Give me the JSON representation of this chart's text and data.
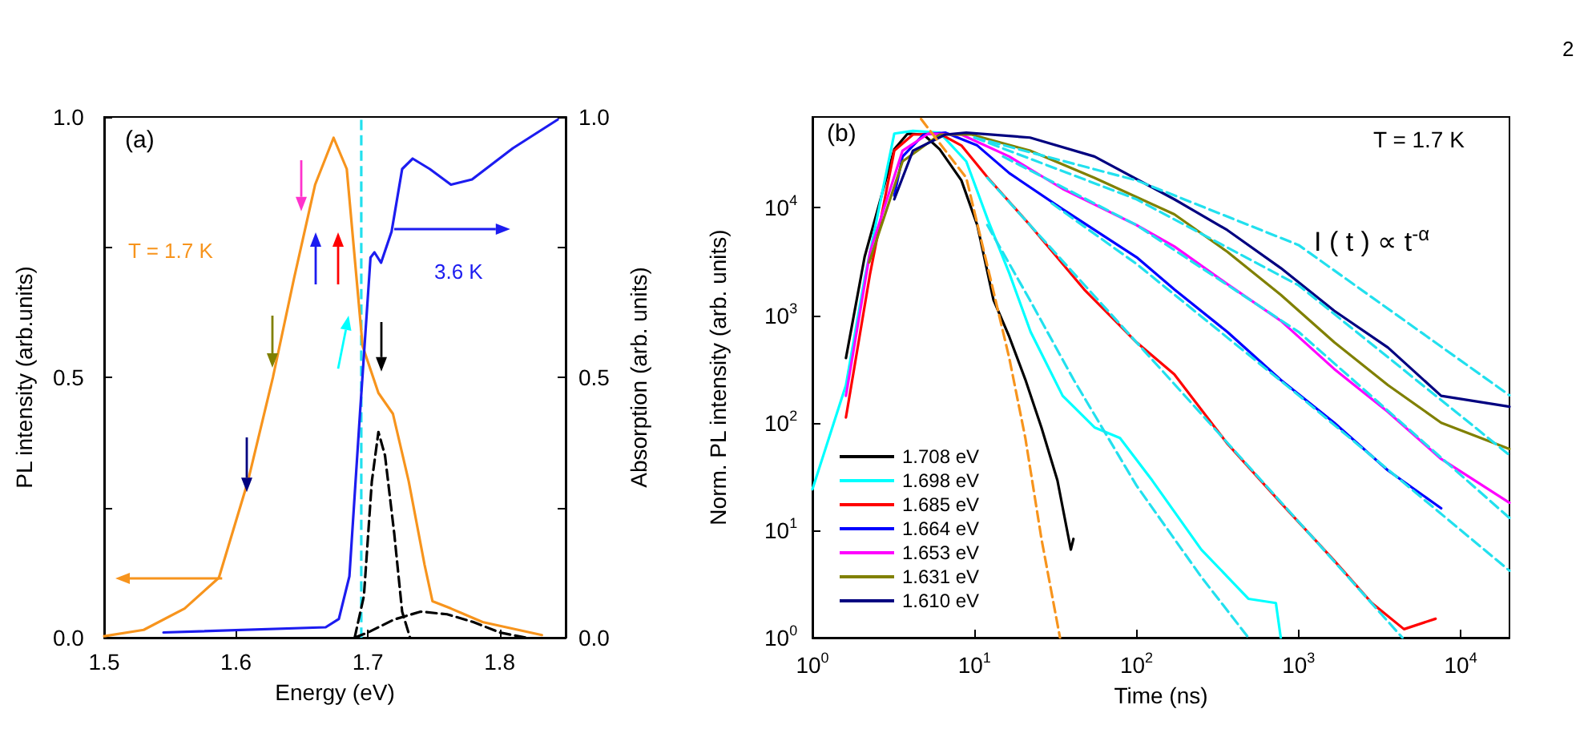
{
  "chart_data": [
    {
      "type": "line",
      "xlabel": "Energy (eV)",
      "ylabel": "PL intensity (arb.units)",
      "y2label": "Absorption (arb. units)",
      "xlim": [
        1.5,
        1.85
      ],
      "xticks": [
        1.5,
        1.6,
        1.7,
        1.8
      ],
      "ylim": [
        0,
        1
      ],
      "yticks": [
        {
          "value": 0,
          "label": "0.0"
        },
        {
          "value": 0.25,
          "label": null
        },
        {
          "value": 0.5,
          "label": "0.5"
        },
        {
          "value": 0.75,
          "label": null
        },
        {
          "value": 1,
          "label": "1.0"
        }
      ],
      "y2lim": [
        0,
        1
      ],
      "y2ticks": [
        {
          "value": 0,
          "label": "0.0"
        },
        {
          "value": 0.25,
          "label": null
        },
        {
          "value": 0.5,
          "label": "0.5"
        },
        {
          "value": 0.75,
          "label": null
        },
        {
          "value": 1,
          "label": "1.0"
        }
      ],
      "grid": false,
      "annotations": [
        "(a)",
        "T = 1.7 K",
        "3.6 K"
      ],
      "ref_lines": [
        {
          "axis": "x",
          "value": 1.695,
          "color": "#22e0ee",
          "line_style": "dashed"
        }
      ],
      "series": [
        {
          "color": "#f7941d",
          "x": [
            1.5,
            1.53,
            1.561,
            1.587,
            1.609,
            1.628,
            1.644,
            1.66,
            1.674,
            1.684,
            1.69,
            1.696,
            1.708,
            1.719,
            1.731,
            1.743,
            1.749,
            1.763,
            1.787,
            1.814,
            1.832
          ],
          "values": [
            0.003,
            0.015,
            0.056,
            0.115,
            0.3,
            0.5,
            0.69,
            0.87,
            0.96,
            0.9,
            0.73,
            0.56,
            0.47,
            0.43,
            0.3,
            0.14,
            0.07,
            0.056,
            0.03,
            0.015,
            0.005
          ]
        },
        {
          "color": "#1c1cf0",
          "axis": "y2",
          "x": [
            1.545,
            1.668,
            1.678,
            1.686,
            1.694,
            1.702,
            1.705,
            1.71,
            1.718,
            1.726,
            1.734,
            1.747,
            1.763,
            1.779,
            1.81,
            1.844
          ],
          "values": [
            0.01,
            0.02,
            0.036,
            0.118,
            0.43,
            0.73,
            0.74,
            0.72,
            0.78,
            0.9,
            0.92,
            0.9,
            0.87,
            0.88,
            0.94,
            0.995
          ]
        },
        {
          "color": "#000000",
          "line_style": "dashed",
          "x": [
            1.69,
            1.697,
            1.703,
            1.708,
            1.713,
            1.72,
            1.726,
            1.732
          ],
          "values": [
            0,
            0.08,
            0.3,
            0.395,
            0.35,
            0.2,
            0.05,
            0
          ]
        },
        {
          "color": "#000000",
          "line_style": "dashed",
          "x": [
            1.69,
            1.7,
            1.72,
            1.74,
            1.76,
            1.78,
            1.8,
            1.82
          ],
          "values": [
            0,
            0.01,
            0.035,
            0.05,
            0.045,
            0.03,
            0.01,
            0
          ]
        }
      ]
    },
    {
      "type": "line",
      "xlabel": "Time (ns)",
      "ylabel": "Norm. PL intensity (arb. units)",
      "log": "xy",
      "xlim": [
        1,
        20000
      ],
      "xticks": [
        {
          "value": 1,
          "label": "10$^{0}$"
        },
        {
          "value": 10,
          "label": "10$^{1}$"
        },
        {
          "value": 100,
          "label": "10$^{2}$"
        },
        {
          "value": 1000,
          "label": "10$^{3}$"
        },
        {
          "value": 10000,
          "label": "10$^{4}$"
        }
      ],
      "ylim": [
        1,
        70000
      ],
      "yticks": [
        {
          "value": 1,
          "label": "10$^{0}$"
        },
        {
          "value": 10,
          "label": "10$^{1}$"
        },
        {
          "value": 100,
          "label": "10$^{2}$"
        },
        {
          "value": 1000,
          "label": "10$^{3}$"
        },
        {
          "value": 10000,
          "label": "10$^{4}$"
        }
      ],
      "grid": false,
      "legend": "bottom left",
      "annotations": [
        "(b)",
        "T = 1.7 K",
        "I ( t ) ∝ t$^{-α}$",
        "2"
      ],
      "series": [
        {
          "name": "1.708 eV",
          "color": "#000000",
          "x": [
            1.61,
            2.1,
            3.2,
            3.87,
            4.86,
            6.1,
            8.3,
            10.4,
            13.1,
            16.4,
            20.6,
            25.9,
            32.5,
            39.3,
            40.8
          ],
          "values": [
            400,
            3500,
            35000,
            49000,
            48000,
            35000,
            18000,
            6900,
            1390,
            630,
            252,
            90,
            29,
            6.6,
            8.3
          ]
        },
        {
          "name": "1.698 eV",
          "color": "#00ffff",
          "x": [
            1,
            1.61,
            2.1,
            3.2,
            4.17,
            6.1,
            8.9,
            12.1,
            16.4,
            22.2,
            35,
            55.3,
            79,
            125,
            251,
            363,
            490,
            724,
            776
          ],
          "values": [
            24,
            224,
            2200,
            49000,
            52000,
            50000,
            27000,
            7700,
            2460,
            700,
            178,
            90,
            72,
            29,
            6.6,
            3.7,
            2.3,
            2.1,
            1
          ]
        },
        {
          "name": "1.685 eV",
          "color": "#ff0000",
          "x": [
            1.61,
            2.27,
            3.2,
            4.17,
            6.1,
            8.3,
            12.1,
            22,
            47.5,
            100,
            171,
            363,
            776,
            1660,
            2830,
            4470,
            7000
          ],
          "values": [
            112,
            2450,
            34000,
            48000,
            49000,
            38000,
            19000,
            6900,
            1740,
            560,
            282,
            64,
            18,
            5.2,
            2.1,
            1.2,
            1.5
          ]
        },
        {
          "name": "1.664 eV",
          "color": "#0000ff",
          "x": [
            3.2,
            3.6,
            4.86,
            6.6,
            10.4,
            16.4,
            35,
            100,
            171,
            363,
            776,
            1660,
            3560,
            7580
          ],
          "values": [
            13000,
            30000,
            48000,
            50000,
            38000,
            21000,
            9700,
            3470,
            1740,
            700,
            250,
            100,
            36,
            16
          ]
        },
        {
          "name": "1.653 eV",
          "color": "#ff00ff",
          "x": [
            1.61,
            2.27,
            3.6,
            5.2,
            8.3,
            16.4,
            35,
            100,
            171,
            363,
            776,
            1660,
            3560,
            7580,
            20000
          ],
          "values": [
            178,
            3900,
            34000,
            49000,
            48000,
            30000,
            15000,
            6900,
            4370,
            1950,
            890,
            316,
            126,
            46,
            18
          ]
        },
        {
          "name": "1.631 eV",
          "color": "#808000",
          "x": [
            2.24,
            3.6,
            6.1,
            9.6,
            22,
            55,
            171,
            363,
            776,
            1660,
            3560,
            7580,
            20000
          ],
          "values": [
            3100,
            27000,
            48000,
            48000,
            34000,
            19000,
            8700,
            3900,
            1550,
            560,
            224,
            100,
            57
          ]
        },
        {
          "name": "1.610 eV",
          "color": "#000080",
          "x": [
            3.2,
            4.17,
            6.6,
            8.9,
            22,
            55,
            171,
            363,
            776,
            1660,
            3560,
            7580,
            20000
          ],
          "values": [
            12000,
            34000,
            48000,
            50000,
            45000,
            30000,
            12000,
            6200,
            2750,
            1100,
            500,
            178,
            141
          ]
        },
        {
          "color": "#f7941d",
          "line_style": "dashed",
          "x": [
            4.68,
            8.9,
            12.1,
            16.4,
            20.6,
            25.9,
            33.7
          ],
          "values": [
            67000,
            19000,
            2750,
            398,
            72,
            8.3,
            1
          ]
        },
        {
          "color": "#22e0ee",
          "line_style": "dashed",
          "x": [
            12,
            22,
            41,
            100,
            250,
            490
          ],
          "values": [
            6900,
            1380,
            250,
            26,
            3.7,
            1
          ]
        },
        {
          "color": "#22e0ee",
          "line_style": "dashed",
          "x": [
            12,
            22,
            100,
            1000,
            4370
          ],
          "values": [
            19000,
            6900,
            560,
            12,
            1
          ]
        },
        {
          "color": "#22e0ee",
          "line_style": "dashed",
          "x": [
            30,
            100,
            1000,
            20000
          ],
          "values": [
            11000,
            3000,
            180,
            4.2
          ]
        },
        {
          "color": "#22e0ee",
          "line_style": "dashed",
          "x": [
            15,
            100,
            1000,
            20000
          ],
          "values": [
            30000,
            6900,
            700,
            13
          ]
        },
        {
          "color": "#22e0ee",
          "line_style": "dashed",
          "x": [
            10,
            100,
            1000,
            20000
          ],
          "values": [
            45000,
            12000,
            1900,
            50
          ]
        },
        {
          "color": "#22e0ee",
          "line_style": "dashed",
          "x": [
            10,
            100,
            1000,
            20000
          ],
          "values": [
            45000,
            18000,
            4500,
            180
          ]
        }
      ]
    }
  ]
}
